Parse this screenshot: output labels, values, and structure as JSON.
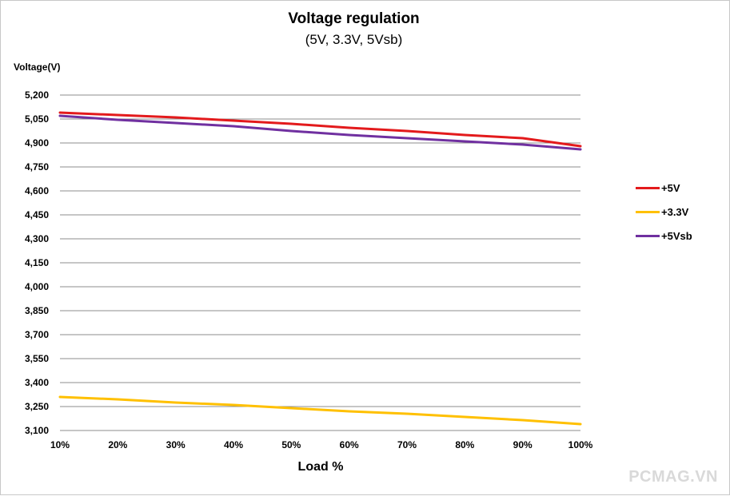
{
  "chart_data": {
    "type": "line",
    "title": "Voltage regulation",
    "subtitle": "(5V, 3.3V, 5Vsb)",
    "xlabel": "Load %",
    "ylabel": "Voltage(V)",
    "categories": [
      "10%",
      "20%",
      "30%",
      "40%",
      "50%",
      "60%",
      "70%",
      "80%",
      "90%",
      "100%"
    ],
    "ylim": [
      3100,
      5200
    ],
    "yticks": [
      5200,
      5050,
      4900,
      4750,
      4600,
      4450,
      4300,
      4150,
      4000,
      3850,
      3700,
      3550,
      3400,
      3250,
      3100
    ],
    "ytick_labels": [
      "5,200",
      "5,050",
      "4,900",
      "4,750",
      "4,600",
      "4,450",
      "4,300",
      "4,150",
      "4,000",
      "3,850",
      "3,700",
      "3,550",
      "3,400",
      "3,250",
      "3,100"
    ],
    "grid": true,
    "legend_position": "right",
    "series": [
      {
        "name": "+5V",
        "color": "#e31a1c",
        "values": [
          5090,
          5075,
          5060,
          5040,
          5020,
          4995,
          4975,
          4950,
          4930,
          4880
        ]
      },
      {
        "name": "+3.3V",
        "color": "#ffc000",
        "values": [
          3310,
          3295,
          3275,
          3260,
          3240,
          3220,
          3205,
          3185,
          3165,
          3140
        ]
      },
      {
        "name": "+5Vsb",
        "color": "#7030a0",
        "values": [
          5070,
          5045,
          5025,
          5005,
          4975,
          4950,
          4930,
          4910,
          4890,
          4860
        ]
      }
    ]
  },
  "watermark": "PCMAG.VN"
}
